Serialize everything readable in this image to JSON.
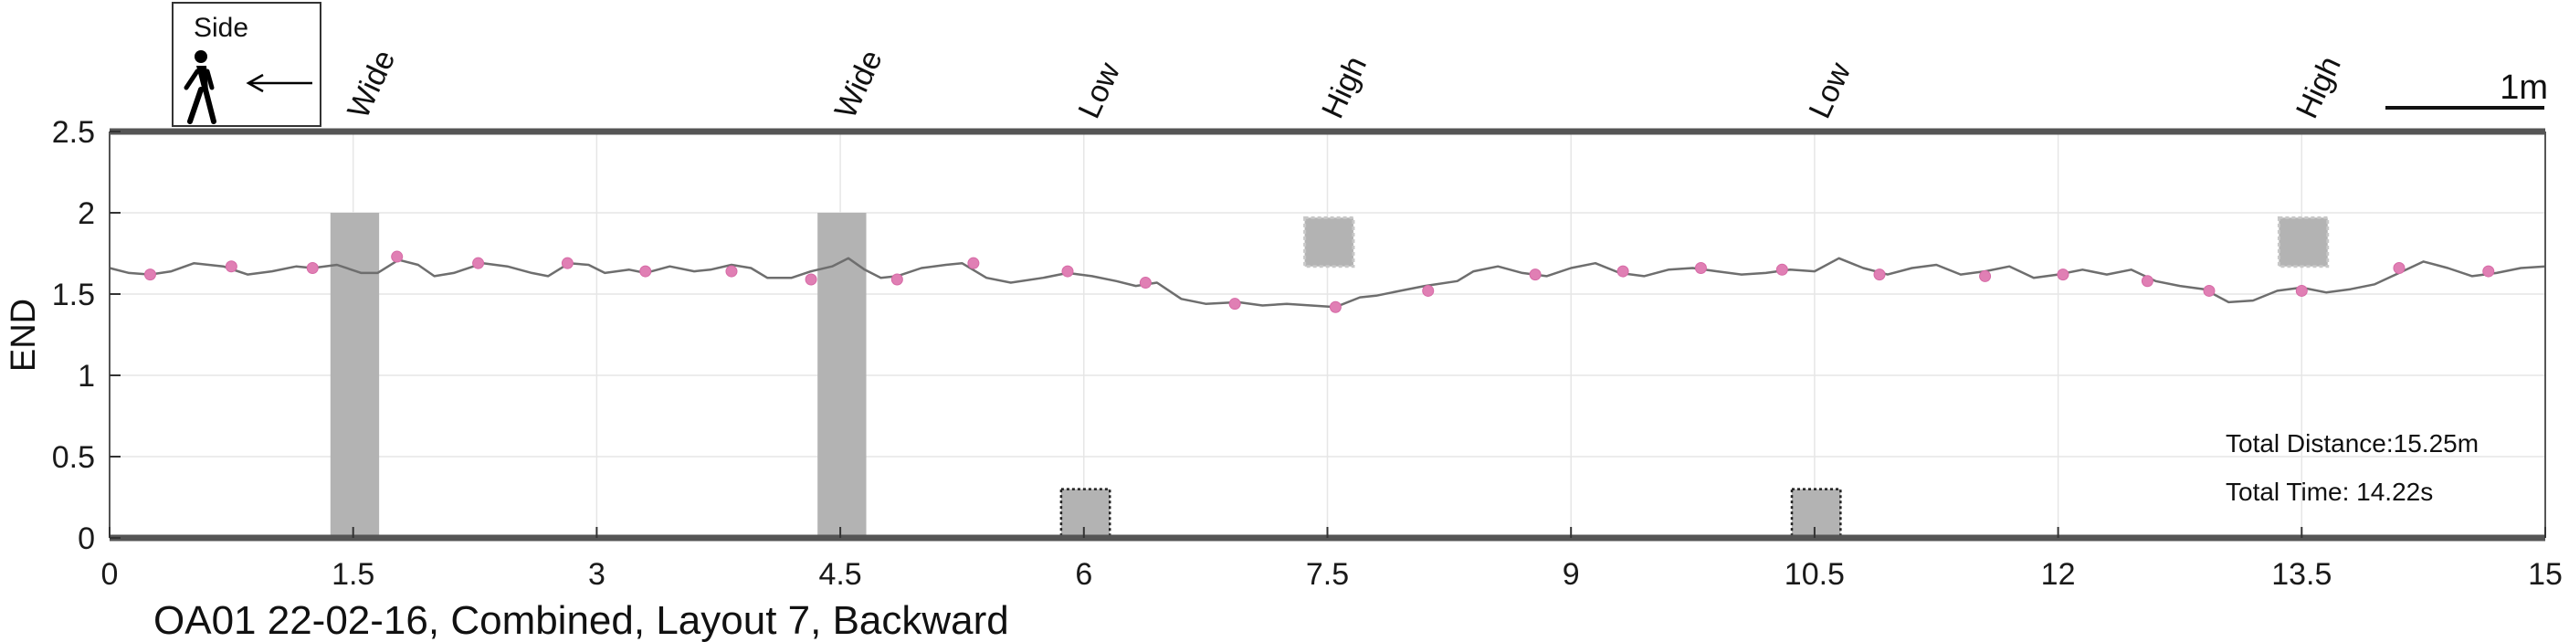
{
  "chart_data": {
    "type": "line",
    "ylabel": "END",
    "xlim": [
      0,
      15
    ],
    "ylim": [
      0,
      2.5
    ],
    "x_ticks": [
      "0",
      "1.5",
      "3",
      "4.5",
      "6",
      "7.5",
      "9",
      "10.5",
      "12",
      "13.5",
      "15"
    ],
    "y_ticks": [
      "0",
      "0.5",
      "1",
      "1.5",
      "2",
      "2.5"
    ],
    "grid": true,
    "caption": "OA01 22-02-16, Combined, Layout 7, Backward",
    "direction_box": {
      "label": "Side",
      "icons": [
        "walking-person-icon",
        "arrow-left-icon"
      ]
    },
    "scale_bar": {
      "label": "1m",
      "length": 1
    },
    "annotations": {
      "total_distance": "Total Distance:15.25m",
      "total_time": "Total Time: 14.22s"
    },
    "obstacles": [
      {
        "label": "Wide",
        "type": "wide",
        "x": [
          1.36,
          1.66
        ],
        "y": [
          0,
          2.0
        ]
      },
      {
        "label": "Wide",
        "type": "wide",
        "x": [
          4.36,
          4.66
        ],
        "y": [
          0,
          2.0
        ]
      },
      {
        "label": "Low",
        "type": "low",
        "x": [
          5.86,
          6.16
        ],
        "y": [
          0,
          0.3
        ]
      },
      {
        "label": "High",
        "type": "high",
        "x": [
          7.36,
          7.66
        ],
        "y": [
          1.67,
          1.97
        ]
      },
      {
        "label": "Low",
        "type": "low",
        "x": [
          10.36,
          10.66
        ],
        "y": [
          0,
          0.3
        ]
      },
      {
        "label": "High",
        "type": "high",
        "x": [
          13.36,
          13.66
        ],
        "y": [
          1.67,
          1.97
        ]
      }
    ],
    "series": [
      {
        "color": "#6e6e6e",
        "x": [
          0,
          0.12,
          0.25,
          0.38,
          0.52,
          0.7,
          0.85,
          1.0,
          1.15,
          1.25,
          1.4,
          1.55,
          1.65,
          1.78,
          1.9,
          2.0,
          2.12,
          2.3,
          2.45,
          2.6,
          2.7,
          2.83,
          2.95,
          3.05,
          3.2,
          3.3,
          3.45,
          3.6,
          3.7,
          3.83,
          3.95,
          4.05,
          4.2,
          4.32,
          4.45,
          4.55,
          4.65,
          4.75,
          4.85,
          5.0,
          5.15,
          5.25,
          5.4,
          5.55,
          5.75,
          5.9,
          6.05,
          6.2,
          6.32,
          6.45,
          6.6,
          6.75,
          6.95,
          7.1,
          7.25,
          7.4,
          7.55,
          7.7,
          7.8,
          7.95,
          8.1,
          8.3,
          8.4,
          8.55,
          8.7,
          8.85,
          9.0,
          9.15,
          9.3,
          9.45,
          9.6,
          9.75,
          9.9,
          10.05,
          10.2,
          10.35,
          10.5,
          10.65,
          10.8,
          10.95,
          11.1,
          11.25,
          11.4,
          11.55,
          11.7,
          11.85,
          12.0,
          12.15,
          12.3,
          12.45,
          12.6,
          12.75,
          12.9,
          13.05,
          13.2,
          13.35,
          13.5,
          13.65,
          13.8,
          13.95,
          14.1,
          14.25,
          14.4,
          14.55,
          14.7,
          14.85,
          15.0
        ],
        "y": [
          1.66,
          1.63,
          1.62,
          1.64,
          1.69,
          1.67,
          1.62,
          1.64,
          1.67,
          1.66,
          1.68,
          1.63,
          1.63,
          1.71,
          1.68,
          1.61,
          1.63,
          1.69,
          1.67,
          1.63,
          1.61,
          1.69,
          1.68,
          1.63,
          1.65,
          1.63,
          1.67,
          1.64,
          1.65,
          1.68,
          1.66,
          1.6,
          1.6,
          1.64,
          1.67,
          1.72,
          1.65,
          1.6,
          1.61,
          1.66,
          1.68,
          1.69,
          1.6,
          1.57,
          1.6,
          1.63,
          1.61,
          1.58,
          1.55,
          1.57,
          1.47,
          1.44,
          1.45,
          1.43,
          1.44,
          1.43,
          1.42,
          1.48,
          1.49,
          1.52,
          1.55,
          1.58,
          1.64,
          1.67,
          1.63,
          1.61,
          1.66,
          1.69,
          1.63,
          1.61,
          1.65,
          1.66,
          1.64,
          1.62,
          1.63,
          1.65,
          1.64,
          1.72,
          1.66,
          1.62,
          1.66,
          1.68,
          1.62,
          1.64,
          1.67,
          1.6,
          1.62,
          1.65,
          1.62,
          1.65,
          1.58,
          1.55,
          1.53,
          1.45,
          1.46,
          1.52,
          1.54,
          1.51,
          1.53,
          1.56,
          1.63,
          1.7,
          1.66,
          1.61,
          1.63,
          1.66,
          1.67
        ]
      },
      {
        "color": "#e07fb4",
        "markers": true,
        "x": [
          0.25,
          0.75,
          1.25,
          1.77,
          2.27,
          2.82,
          3.3,
          3.83,
          4.32,
          4.85,
          5.32,
          5.9,
          6.38,
          6.93,
          7.55,
          8.12,
          8.78,
          9.32,
          9.8,
          10.3,
          10.9,
          11.55,
          12.03,
          12.55,
          12.93,
          13.5,
          14.1,
          14.65
        ],
        "y": [
          1.62,
          1.67,
          1.66,
          1.73,
          1.69,
          1.69,
          1.64,
          1.64,
          1.59,
          1.59,
          1.69,
          1.64,
          1.57,
          1.44,
          1.42,
          1.52,
          1.62,
          1.64,
          1.66,
          1.65,
          1.62,
          1.61,
          1.62,
          1.58,
          1.52,
          1.52,
          1.66,
          1.64
        ]
      }
    ]
  }
}
